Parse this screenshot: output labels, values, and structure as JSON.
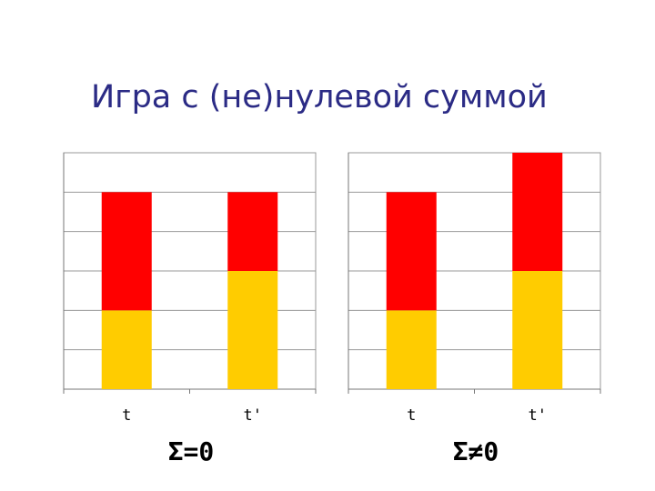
{
  "title": "Игра с (не)нулевой суммой",
  "chart_data": [
    {
      "type": "bar",
      "stacked": true,
      "categories": [
        "t",
        "t'"
      ],
      "series": [
        {
          "color": "#ffcc00",
          "values": [
            2,
            3
          ]
        },
        {
          "color": "#ff0000",
          "values": [
            3,
            2
          ]
        }
      ],
      "ylim": [
        0,
        6
      ],
      "yticks": [
        0,
        1,
        2,
        3,
        4,
        5,
        6
      ],
      "grid": true,
      "annotation": "Σ=0"
    },
    {
      "type": "bar",
      "stacked": true,
      "categories": [
        "t",
        "t'"
      ],
      "series": [
        {
          "color": "#ffcc00",
          "values": [
            2,
            3
          ]
        },
        {
          "color": "#ff0000",
          "values": [
            3,
            3
          ]
        }
      ],
      "ylim": [
        0,
        6
      ],
      "yticks": [
        0,
        1,
        2,
        3,
        4,
        5,
        6
      ],
      "grid": true,
      "annotation": "Σ≠0"
    }
  ]
}
